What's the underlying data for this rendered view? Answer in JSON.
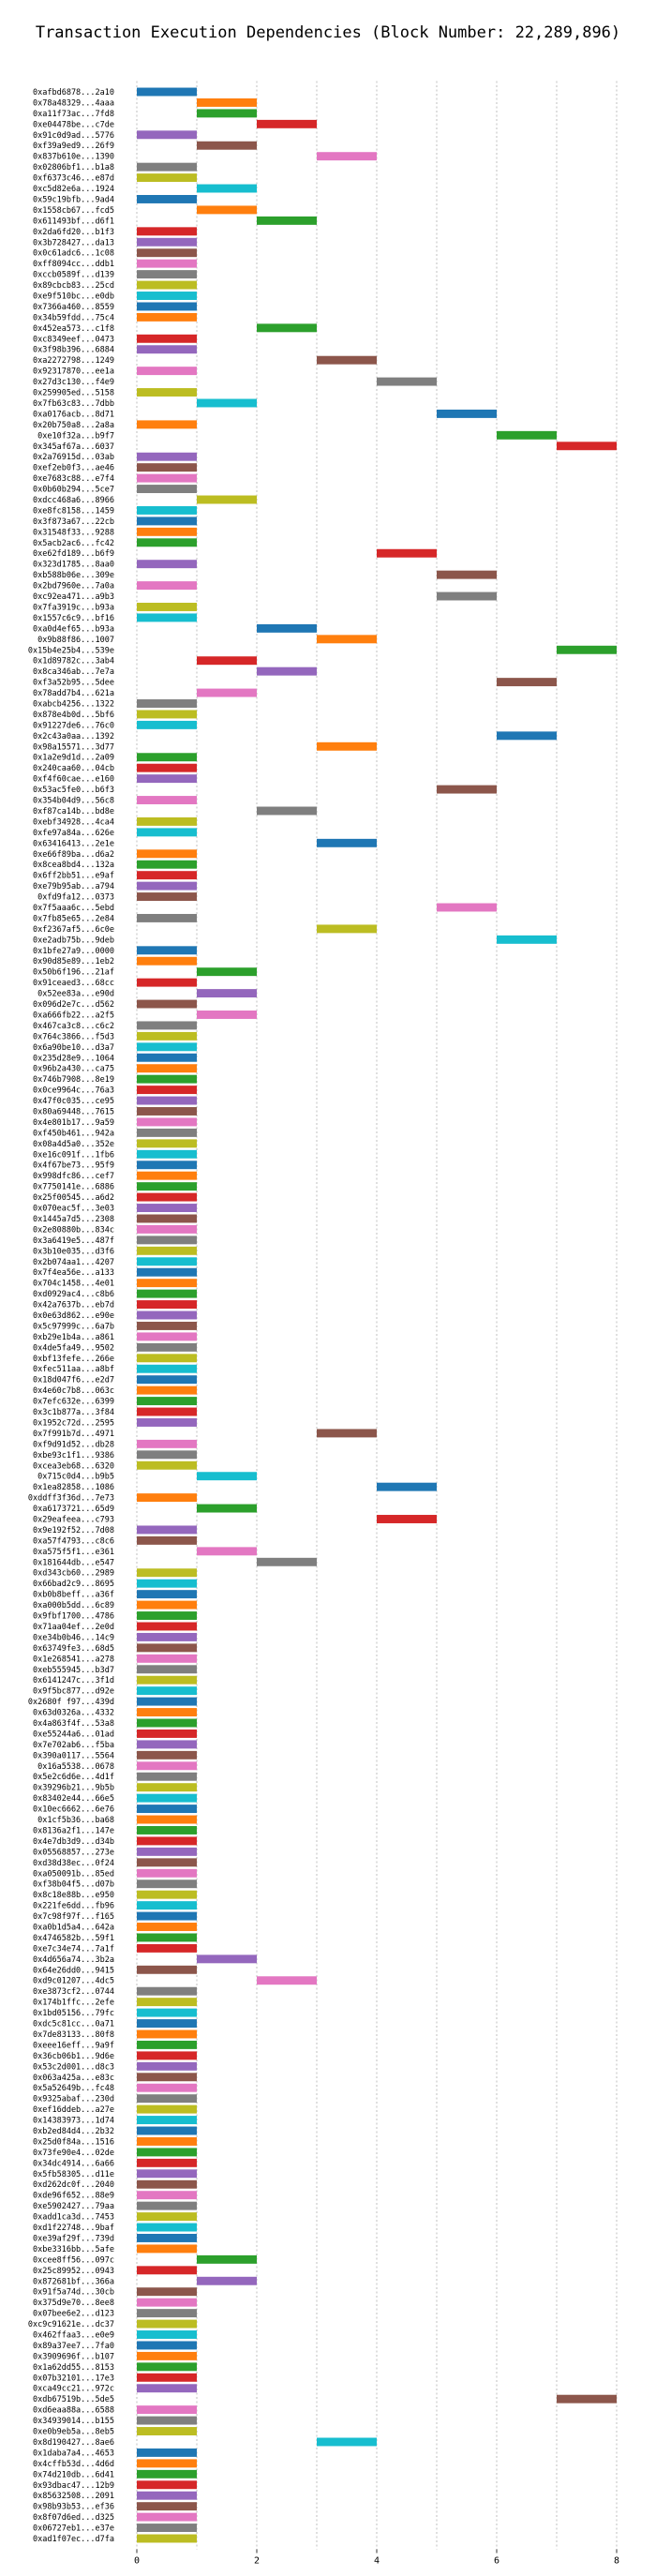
{
  "chart_data": {
    "type": "bar",
    "orientation": "horizontal",
    "title": "Transaction Execution Dependencies (Block Number: 22,289,896)",
    "xlabel": "",
    "ylabel": "",
    "xlim": [
      -0.25,
      8.5
    ],
    "xticks": [
      0,
      2,
      4,
      6,
      8
    ],
    "grid": "x-dashed",
    "palette": [
      "#1f77b4",
      "#ff7f0e",
      "#2ca02c",
      "#d62728",
      "#9467bd",
      "#8c564b",
      "#e377c2",
      "#7f7f7f",
      "#bcbd22",
      "#17becf"
    ],
    "bar_width": 1,
    "transactions": [
      {
        "hash": "0xafbd6878...2a10",
        "start": 0
      },
      {
        "hash": "0x78a48329...4aaa",
        "start": 1
      },
      {
        "hash": "0xa11f73ac...7fd8",
        "start": 1
      },
      {
        "hash": "0xe04478be...c7de",
        "start": 2
      },
      {
        "hash": "0x91c0d9ad...5776",
        "start": 0
      },
      {
        "hash": "0xf39a9ed9...26f9",
        "start": 1
      },
      {
        "hash": "0x837b610e...1390",
        "start": 3
      },
      {
        "hash": "0x02806bf1...b1a8",
        "start": 0
      },
      {
        "hash": "0xf6373c46...e87d",
        "start": 0
      },
      {
        "hash": "0xc5d82e6a...1924",
        "start": 1
      },
      {
        "hash": "0x59c19bfb...9ad4",
        "start": 0
      },
      {
        "hash": "0x1558cb67...fcd5",
        "start": 1
      },
      {
        "hash": "0x611493bf...d6f1",
        "start": 2
      },
      {
        "hash": "0x2da6fd20...b1f3",
        "start": 0
      },
      {
        "hash": "0x3b728427...da13",
        "start": 0
      },
      {
        "hash": "0x0c61adc6...1c08",
        "start": 0
      },
      {
        "hash": "0xff8094cc...ddb1",
        "start": 0
      },
      {
        "hash": "0xccb0589f...d139",
        "start": 0
      },
      {
        "hash": "0x89cbcb83...25cd",
        "start": 0
      },
      {
        "hash": "0xe9f510bc...e0db",
        "start": 0
      },
      {
        "hash": "0x7366a460...8559",
        "start": 0
      },
      {
        "hash": "0x34b59fdd...75c4",
        "start": 0
      },
      {
        "hash": "0x452ea573...c1f8",
        "start": 2
      },
      {
        "hash": "0xc8349eef...0473",
        "start": 0
      },
      {
        "hash": "0x3f98b396...6884",
        "start": 0
      },
      {
        "hash": "0xa2272798...1249",
        "start": 3
      },
      {
        "hash": "0x92317870...ee1a",
        "start": 0
      },
      {
        "hash": "0x27d3c130...f4e9",
        "start": 4
      },
      {
        "hash": "0x259905ed...5158",
        "start": 0
      },
      {
        "hash": "0x7fb63c83...7dbb",
        "start": 1
      },
      {
        "hash": "0xa0176acb...8d71",
        "start": 5
      },
      {
        "hash": "0x20b750a8...2a8a",
        "start": 0
      },
      {
        "hash": "0xe10f32a...b9f7",
        "start": 6
      },
      {
        "hash": "0x345af67a...6037",
        "start": 7
      },
      {
        "hash": "0x2a76915d...03ab",
        "start": 0
      },
      {
        "hash": "0xef2eb0f3...ae46",
        "start": 0
      },
      {
        "hash": "0xe7683c88...e7f4",
        "start": 0
      },
      {
        "hash": "0x0b60b294...5ce7",
        "start": 0
      },
      {
        "hash": "0xdcc468a6...8966",
        "start": 1
      },
      {
        "hash": "0xe8fc8158...1459",
        "start": 0
      },
      {
        "hash": "0x3f873a67...22cb",
        "start": 0
      },
      {
        "hash": "0x31548f33...9288",
        "start": 0
      },
      {
        "hash": "0x5acb2ac6...fc42",
        "start": 0
      },
      {
        "hash": "0xe62fd189...b6f9",
        "start": 4
      },
      {
        "hash": "0x323d1785...8aa0",
        "start": 0
      },
      {
        "hash": "0xb588b06e...309e",
        "start": 5
      },
      {
        "hash": "0x2bd7960e...7a0a",
        "start": 0
      },
      {
        "hash": "0xc92ea471...a9b3",
        "start": 5
      },
      {
        "hash": "0x7fa3919c...b93a",
        "start": 0
      },
      {
        "hash": "0x1557c6c9...bf16",
        "start": 0
      },
      {
        "hash": "0xa0d4ef65...b93a",
        "start": 2
      },
      {
        "hash": "0x9b88f86...1007",
        "start": 3
      },
      {
        "hash": "0x15b4e25b4...539e",
        "start": 7
      },
      {
        "hash": "0x1d89782c...3ab4",
        "start": 1
      },
      {
        "hash": "0x8ca346ab...7e7a",
        "start": 2
      },
      {
        "hash": "0xf3a52b95...5dee",
        "start": 6
      },
      {
        "hash": "0x78add7b4...621a",
        "start": 1
      },
      {
        "hash": "0xabcb4256...1322",
        "start": 0
      },
      {
        "hash": "0x878e4b0d...5bf6",
        "start": 0
      },
      {
        "hash": "0x91227de6...76c0",
        "start": 0
      },
      {
        "hash": "0x2c43a0aa...1392",
        "start": 6
      },
      {
        "hash": "0x98a15571...3d77",
        "start": 3
      },
      {
        "hash": "0x1a2e9d1d...2a09",
        "start": 0
      },
      {
        "hash": "0x240caa60...04cb",
        "start": 0
      },
      {
        "hash": "0xf4f60cae...e160",
        "start": 0
      },
      {
        "hash": "0x53ac5fe0...b6f3",
        "start": 5
      },
      {
        "hash": "0x354b04d9...56c8",
        "start": 0
      },
      {
        "hash": "0xf87ca14b...bd8e",
        "start": 2
      },
      {
        "hash": "0xebf34928...4ca4",
        "start": 0
      },
      {
        "hash": "0xfe97a84a...626e",
        "start": 0
      },
      {
        "hash": "0x63416413...2e1e",
        "start": 3
      },
      {
        "hash": "0xe66f89ba...d6a2",
        "start": 0
      },
      {
        "hash": "0x8cea8bd4...132a",
        "start": 0
      },
      {
        "hash": "0x6ff2bb51...e9af",
        "start": 0
      },
      {
        "hash": "0xe79b95ab...a794",
        "start": 0
      },
      {
        "hash": "0xfd9fa12...0373",
        "start": 0
      },
      {
        "hash": "0x7f5aaa6c...5ebd",
        "start": 5
      },
      {
        "hash": "0x7fb85e65...2e84",
        "start": 0
      },
      {
        "hash": "0xf2367af5...6c0e",
        "start": 3
      },
      {
        "hash": "0xe2adb75b...9deb",
        "start": 6
      },
      {
        "hash": "0x1bfe27a9...0000",
        "start": 0
      },
      {
        "hash": "0x90d85e89...1eb2",
        "start": 0
      },
      {
        "hash": "0x50b6f196...21af",
        "start": 1
      },
      {
        "hash": "0x91ceaed3...68cc",
        "start": 0
      },
      {
        "hash": "0x52ee83a...e90d",
        "start": 1
      },
      {
        "hash": "0x096d2e7c...d562",
        "start": 0
      },
      {
        "hash": "0xa666fb22...a2f5",
        "start": 1
      },
      {
        "hash": "0x467ca3c8...c6c2",
        "start": 0
      },
      {
        "hash": "0x764c3866...f5d3",
        "start": 0
      },
      {
        "hash": "0x6a90be10...d3a7",
        "start": 0
      },
      {
        "hash": "0x235d28e9...1064",
        "start": 0
      },
      {
        "hash": "0x96b2a430...ca75",
        "start": 0
      },
      {
        "hash": "0x746b7908...8e19",
        "start": 0
      },
      {
        "hash": "0x0ce9964c...76a3",
        "start": 0
      },
      {
        "hash": "0x47f0c035...ce95",
        "start": 0
      },
      {
        "hash": "0x80a69448...7615",
        "start": 0
      },
      {
        "hash": "0x4e801b17...9a59",
        "start": 0
      },
      {
        "hash": "0xf450b461...942a",
        "start": 0
      },
      {
        "hash": "0x08a4d5a0...352e",
        "start": 0
      },
      {
        "hash": "0xe16c091f...1fb6",
        "start": 0
      },
      {
        "hash": "0x4f67be73...95f9",
        "start": 0
      },
      {
        "hash": "0x998dfc86...cef7",
        "start": 0
      },
      {
        "hash": "0x7750141e...6886",
        "start": 0
      },
      {
        "hash": "0x25f00545...a6d2",
        "start": 0
      },
      {
        "hash": "0x070eac5f...3e03",
        "start": 0
      },
      {
        "hash": "0x1445a7d5...2308",
        "start": 0
      },
      {
        "hash": "0x2e80880b...834c",
        "start": 0
      },
      {
        "hash": "0x3a6419e5...487f",
        "start": 0
      },
      {
        "hash": "0x3b10e035...d3f6",
        "start": 0
      },
      {
        "hash": "0x2b074aa1...4207",
        "start": 0
      },
      {
        "hash": "0x7f4ea56e...a133",
        "start": 0
      },
      {
        "hash": "0x704c1458...4e01",
        "start": 0
      },
      {
        "hash": "0xd0929ac4...c8b6",
        "start": 0
      },
      {
        "hash": "0x42a7637b...eb7d",
        "start": 0
      },
      {
        "hash": "0x0e63d862...e90e",
        "start": 0
      },
      {
        "hash": "0x5c97999c...6a7b",
        "start": 0
      },
      {
        "hash": "0xb29e1b4a...a861",
        "start": 0
      },
      {
        "hash": "0x4de5fa49...9502",
        "start": 0
      },
      {
        "hash": "0xbf13fefe...266e",
        "start": 0
      },
      {
        "hash": "0xfec511aa...a8bf",
        "start": 0
      },
      {
        "hash": "0x18d047f6...e2d7",
        "start": 0
      },
      {
        "hash": "0x4e60c7b8...063c",
        "start": 0
      },
      {
        "hash": "0x7efc632e...6399",
        "start": 0
      },
      {
        "hash": "0x3c1b877a...3f84",
        "start": 0
      },
      {
        "hash": "0x1952c72d...2595",
        "start": 0
      },
      {
        "hash": "0x7f991b7d...4971",
        "start": 3
      },
      {
        "hash": "0xf9d91d52...db28",
        "start": 0
      },
      {
        "hash": "0xbe93c1f1...9386",
        "start": 0
      },
      {
        "hash": "0xcea3eb68...6320",
        "start": 0
      },
      {
        "hash": "0x715c0d4...b9b5",
        "start": 1
      },
      {
        "hash": "0x1ea82858...1086",
        "start": 4
      },
      {
        "hash": "0xddff3f36d...7e73",
        "start": 0
      },
      {
        "hash": "0xa6173721...65d9",
        "start": 1
      },
      {
        "hash": "0x29eafeea...c793",
        "start": 4
      },
      {
        "hash": "0x9e192f52...7d08",
        "start": 0
      },
      {
        "hash": "0xa57f4793...c8c6",
        "start": 0
      },
      {
        "hash": "0xa575f5f1...e361",
        "start": 1
      },
      {
        "hash": "0x181644db...e547",
        "start": 2
      },
      {
        "hash": "0xd343cb60...2989",
        "start": 0
      },
      {
        "hash": "0x66bad2c9...8695",
        "start": 0
      },
      {
        "hash": "0xb0b8beff...a36f",
        "start": 0
      },
      {
        "hash": "0xa000b5dd...6c89",
        "start": 0
      },
      {
        "hash": "0x9fbf1700...4786",
        "start": 0
      },
      {
        "hash": "0x71aa04ef...2e0d",
        "start": 0
      },
      {
        "hash": "0xe34b0b46...14c9",
        "start": 0
      },
      {
        "hash": "0x63749fe3...68d5",
        "start": 0
      },
      {
        "hash": "0x1e268541...a278",
        "start": 0
      },
      {
        "hash": "0xeb555945...b3d7",
        "start": 0
      },
      {
        "hash": "0x6141247c...3f1d",
        "start": 0
      },
      {
        "hash": "0x9f5bc877...d92e",
        "start": 0
      },
      {
        "hash": "0x2680f f97...439d",
        "start": 0
      },
      {
        "hash": "0x63d0326a...4332",
        "start": 0
      },
      {
        "hash": "0x4a863f4f...53a8",
        "start": 0
      },
      {
        "hash": "0xe55244a6...01ad",
        "start": 0
      },
      {
        "hash": "0x7e702ab6...f5ba",
        "start": 0
      },
      {
        "hash": "0x390a0117...5564",
        "start": 0
      },
      {
        "hash": "0x16a5538...0678",
        "start": 0
      },
      {
        "hash": "0x5e2c6d6e...4d1f",
        "start": 0
      },
      {
        "hash": "0x39296b21...9b5b",
        "start": 0
      },
      {
        "hash": "0x83402e44...66e5",
        "start": 0
      },
      {
        "hash": "0x10ec6662...6e76",
        "start": 0
      },
      {
        "hash": "0x1cf5b36...ba68",
        "start": 0
      },
      {
        "hash": "0x8136a2f1...147e",
        "start": 0
      },
      {
        "hash": "0x4e7db3d9...d34b",
        "start": 0
      },
      {
        "hash": "0x05568857...273e",
        "start": 0
      },
      {
        "hash": "0xd38d38ec...0f24",
        "start": 0
      },
      {
        "hash": "0xa050091b...85ed",
        "start": 0
      },
      {
        "hash": "0xf38b04f5...d07b",
        "start": 0
      },
      {
        "hash": "0x8c18e88b...e950",
        "start": 0
      },
      {
        "hash": "0x221fe6dd...fb96",
        "start": 0
      },
      {
        "hash": "0x7c98f97f...f165",
        "start": 0
      },
      {
        "hash": "0xa0b1d5a4...642a",
        "start": 0
      },
      {
        "hash": "0x4746582b...59f1",
        "start": 0
      },
      {
        "hash": "0xe7c34e74...7a1f",
        "start": 0
      },
      {
        "hash": "0x4d656a74...3b2a",
        "start": 1
      },
      {
        "hash": "0x64e26dd0...9415",
        "start": 0
      },
      {
        "hash": "0xd9c01207...4dc5",
        "start": 2
      },
      {
        "hash": "0xe3873cf2...0744",
        "start": 0
      },
      {
        "hash": "0x174b1ffc...2efe",
        "start": 0
      },
      {
        "hash": "0x1bd05156...79fc",
        "start": 0
      },
      {
        "hash": "0xdc5c81cc...0a71",
        "start": 0
      },
      {
        "hash": "0x7de83133...80f8",
        "start": 0
      },
      {
        "hash": "0xeee16eff...9a9f",
        "start": 0
      },
      {
        "hash": "0x36cb06b1...9d6e",
        "start": 0
      },
      {
        "hash": "0x53c2d001...d8c3",
        "start": 0
      },
      {
        "hash": "0x063a425a...e83c",
        "start": 0
      },
      {
        "hash": "0x5a52649b...fc48",
        "start": 0
      },
      {
        "hash": "0x9325abaf...230d",
        "start": 0
      },
      {
        "hash": "0xef16ddeb...a27e",
        "start": 0
      },
      {
        "hash": "0x14383973...1d74",
        "start": 0
      },
      {
        "hash": "0xb2ed84d4...2b32",
        "start": 0
      },
      {
        "hash": "0x25d0f84a...1516",
        "start": 0
      },
      {
        "hash": "0x73fe90e4...02de",
        "start": 0
      },
      {
        "hash": "0x34dc4914...6a66",
        "start": 0
      },
      {
        "hash": "0x5fb58305...d11e",
        "start": 0
      },
      {
        "hash": "0xd262dc0f...2040",
        "start": 0
      },
      {
        "hash": "0xde96f652...88e9",
        "start": 0
      },
      {
        "hash": "0xe5902427...79aa",
        "start": 0
      },
      {
        "hash": "0xadd1ca3d...7453",
        "start": 0
      },
      {
        "hash": "0xd1f22748...9baf",
        "start": 0
      },
      {
        "hash": "0xe39af29f...739d",
        "start": 0
      },
      {
        "hash": "0xbe3316bb...5afe",
        "start": 0
      },
      {
        "hash": "0xcee8ff56...097c",
        "start": 1
      },
      {
        "hash": "0x25c89952...0943",
        "start": 0
      },
      {
        "hash": "0x872681bf...366a",
        "start": 1
      },
      {
        "hash": "0x91f5a74d...30cb",
        "start": 0
      },
      {
        "hash": "0x375d9e70...8ee8",
        "start": 0
      },
      {
        "hash": "0x07bee6e2...d123",
        "start": 0
      },
      {
        "hash": "0xc9c91621e...dc37",
        "start": 0
      },
      {
        "hash": "0x462ffaa3...e0e9",
        "start": 0
      },
      {
        "hash": "0x89a37ee7...7fa0",
        "start": 0
      },
      {
        "hash": "0x3909696f...b107",
        "start": 0
      },
      {
        "hash": "0x1a62dd55...8153",
        "start": 0
      },
      {
        "hash": "0x07b32101...17e3",
        "start": 0
      },
      {
        "hash": "0xca49cc21...972c",
        "start": 0
      },
      {
        "hash": "0xdb67519b...5de5",
        "start": 7
      },
      {
        "hash": "0xd6eaa88a...6588",
        "start": 0
      },
      {
        "hash": "0x34939014...b155",
        "start": 0
      },
      {
        "hash": "0xe0b9eb5a...8eb5",
        "start": 0
      },
      {
        "hash": "0x8d190427...8ae6",
        "start": 3
      },
      {
        "hash": "0x1daba7a4...4653",
        "start": 0
      },
      {
        "hash": "0x4cffb53d...4d6d",
        "start": 0
      },
      {
        "hash": "0x74d210db...6d41",
        "start": 0
      },
      {
        "hash": "0x93dbac47...12b9",
        "start": 0
      },
      {
        "hash": "0x85632508...2091",
        "start": 0
      },
      {
        "hash": "0x98b93b53...ef36",
        "start": 0
      },
      {
        "hash": "0x8f07d6ed...d325",
        "start": 0
      },
      {
        "hash": "0x06727eb1...e37e",
        "start": 0
      },
      {
        "hash": "0xad1f07ec...d7fa",
        "start": 0
      }
    ]
  }
}
